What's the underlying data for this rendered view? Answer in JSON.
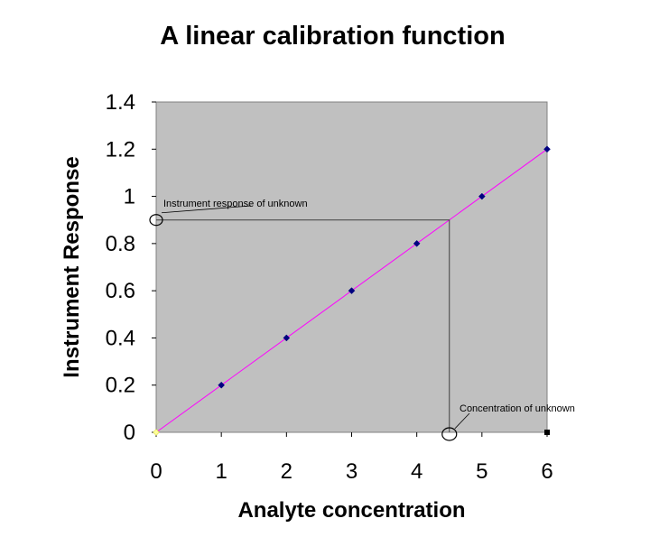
{
  "chart_data": {
    "type": "scatter",
    "title": "A linear calibration function",
    "xlabel": "Analyte concentration",
    "ylabel": "Instrument Response",
    "xlim": [
      0,
      6
    ],
    "ylim": [
      0,
      1.4
    ],
    "x_ticks": [
      "0",
      "1",
      "2",
      "3",
      "4",
      "5",
      "6"
    ],
    "y_ticks": [
      "0",
      "0.2",
      "0.4",
      "0.6",
      "0.8",
      "1",
      "1.2",
      "1.4"
    ],
    "grid": false,
    "legend": "none",
    "plot_background": "#c0c0c0",
    "series": [
      {
        "x": [
          0,
          1,
          2,
          3,
          4,
          5,
          6
        ],
        "y": [
          0,
          0.2,
          0.4,
          0.6,
          0.8,
          1.0,
          1.2
        ],
        "marker_color": "#000080",
        "first_marker_color": "#ffff99"
      }
    ],
    "fit_line": {
      "x": [
        0,
        6
      ],
      "y": [
        0,
        1.2
      ],
      "color": "#ff00ff"
    },
    "unknown": {
      "x": 4.5,
      "y": 0.9
    },
    "annotations": [
      {
        "text": "Instrument response of unknown"
      },
      {
        "text": "Concentration of unknown"
      }
    ]
  }
}
